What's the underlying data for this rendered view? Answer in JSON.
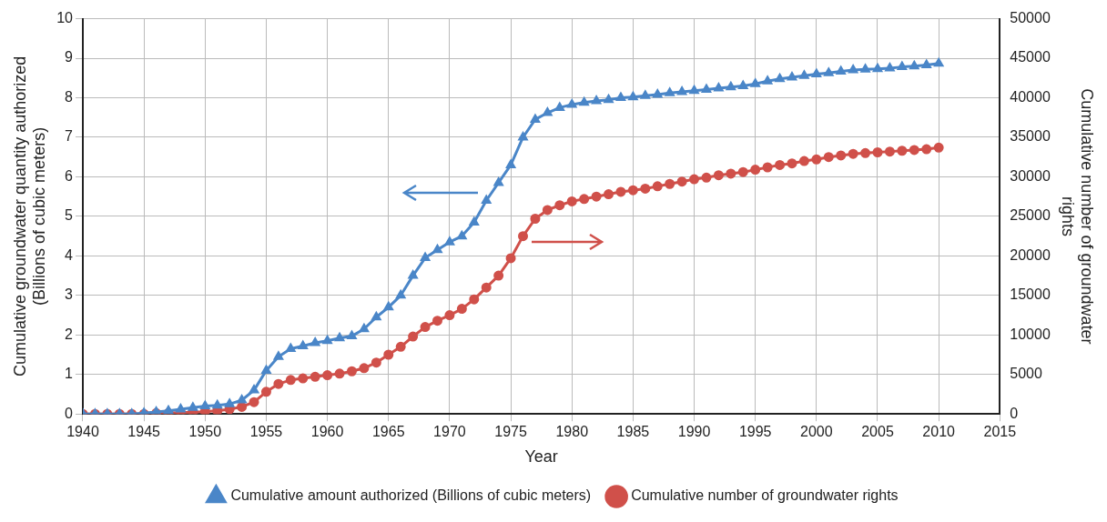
{
  "chart_data": {
    "type": "line",
    "xlabel": "Year",
    "ylabel": "Cumulative groundwater quantity authorized (Billions of cubic meters)",
    "y2label": "Cumulative number of groundwater rights",
    "x": [
      1940,
      1941,
      1942,
      1943,
      1944,
      1945,
      1946,
      1947,
      1948,
      1949,
      1950,
      1951,
      1952,
      1953,
      1954,
      1955,
      1956,
      1957,
      1958,
      1959,
      1960,
      1961,
      1962,
      1963,
      1964,
      1965,
      1966,
      1967,
      1968,
      1969,
      1970,
      1971,
      1972,
      1973,
      1974,
      1975,
      1976,
      1977,
      1978,
      1979,
      1980,
      1981,
      1982,
      1983,
      1984,
      1985,
      1986,
      1987,
      1988,
      1989,
      1990,
      1991,
      1992,
      1993,
      1994,
      1995,
      1996,
      1997,
      1998,
      1999,
      2000,
      2001,
      2002,
      2003,
      2004,
      2005,
      2006,
      2007,
      2008,
      2009,
      2010
    ],
    "series": [
      {
        "name": "Cumulative amount authorized (Billions of cubic meters)",
        "color": "#4a86c8",
        "marker": "triangle",
        "values": [
          0,
          0,
          0,
          0,
          0,
          0.02,
          0.05,
          0.08,
          0.12,
          0.16,
          0.2,
          0.22,
          0.25,
          0.35,
          0.6,
          1.1,
          1.45,
          1.65,
          1.72,
          1.8,
          1.85,
          1.92,
          1.97,
          2.15,
          2.45,
          2.7,
          3.0,
          3.5,
          3.95,
          4.15,
          4.35,
          4.5,
          4.85,
          5.4,
          5.85,
          6.3,
          7.0,
          7.45,
          7.62,
          7.75,
          7.83,
          7.88,
          7.92,
          7.95,
          8.0,
          8.02,
          8.05,
          8.08,
          8.12,
          8.15,
          8.18,
          8.21,
          8.24,
          8.27,
          8.3,
          8.35,
          8.42,
          8.48,
          8.52,
          8.56,
          8.6,
          8.63,
          8.67,
          8.7,
          8.72,
          8.73,
          8.75,
          8.78,
          8.8,
          8.83,
          8.87
        ]
      },
      {
        "name": "Cumulative number of groundwater rights",
        "color": "#d0504a",
        "marker": "circle",
        "axis": "y2",
        "values": [
          0,
          0,
          0,
          0,
          0,
          0,
          100,
          100,
          200,
          200,
          300,
          400,
          600,
          900,
          1500,
          2800,
          3800,
          4300,
          4500,
          4700,
          4900,
          5100,
          5400,
          5800,
          6500,
          7500,
          8500,
          9800,
          11000,
          11800,
          12500,
          13300,
          14500,
          16000,
          17500,
          19700,
          22500,
          24700,
          25800,
          26400,
          26900,
          27200,
          27500,
          27800,
          28100,
          28300,
          28500,
          28800,
          29100,
          29400,
          29700,
          29900,
          30200,
          30400,
          30600,
          30900,
          31200,
          31500,
          31700,
          32000,
          32200,
          32500,
          32700,
          32900,
          33000,
          33100,
          33200,
          33300,
          33400,
          33500,
          33700
        ]
      }
    ],
    "xlim": [
      1940,
      2015
    ],
    "xticks": [
      1940,
      1945,
      1950,
      1955,
      1960,
      1965,
      1970,
      1975,
      1980,
      1985,
      1990,
      1995,
      2000,
      2005,
      2010,
      2015
    ],
    "ylim": [
      0,
      10
    ],
    "yticks": [
      0,
      1,
      2,
      3,
      4,
      5,
      6,
      7,
      8,
      9,
      10
    ],
    "y2lim": [
      0,
      50000
    ],
    "y2ticks": [
      0,
      5000,
      10000,
      15000,
      20000,
      25000,
      30000,
      35000,
      40000,
      45000,
      50000
    ],
    "grid": true,
    "legend": "bottom"
  }
}
